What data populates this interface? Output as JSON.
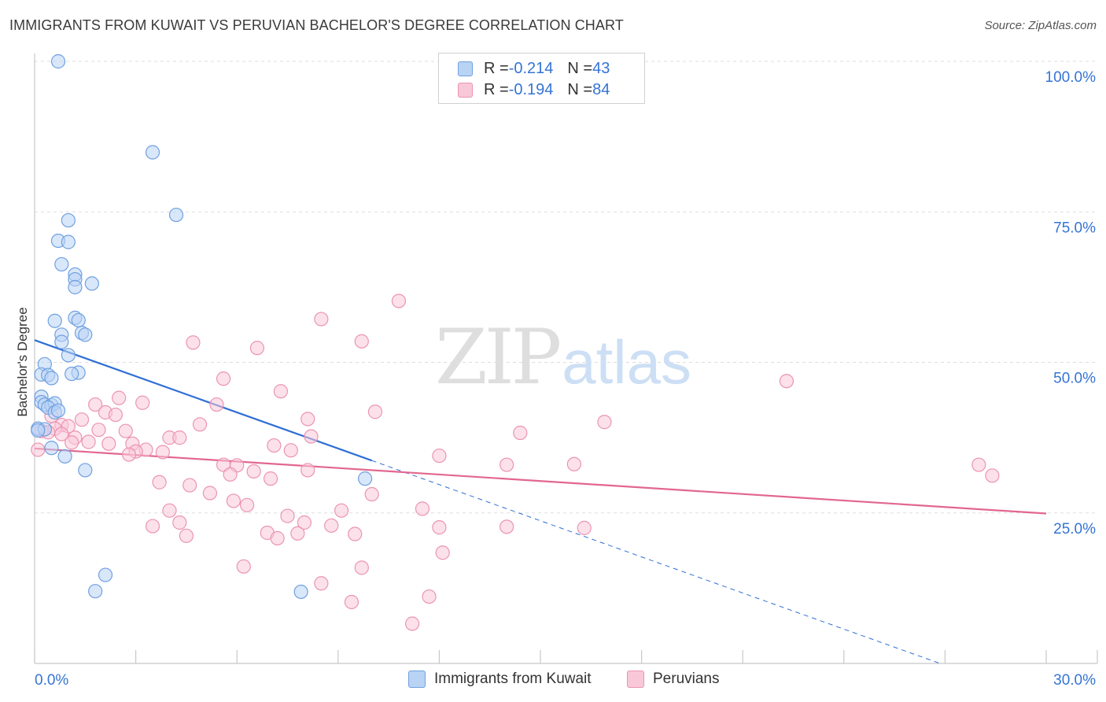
{
  "title": "IMMIGRANTS FROM KUWAIT VS PERUVIAN BACHELOR'S DEGREE CORRELATION CHART",
  "source": "Source: ZipAtlas.com",
  "watermark": {
    "zip": "ZIP",
    "atlas": "atlas"
  },
  "legend_top": {
    "rows": [
      {
        "r_label": "R = ",
        "r_value": "-0.214",
        "n_label": "N = ",
        "n_value": "43"
      },
      {
        "r_label": "R = ",
        "r_value": "-0.194",
        "n_label": "N = ",
        "n_value": "84"
      }
    ]
  },
  "legend_bottom": {
    "series1": "Immigrants from Kuwait",
    "series2": "Peruvians"
  },
  "colors": {
    "kuwait_fill": "#b9d3f5",
    "kuwait_stroke": "#6fa0e0",
    "kuwait_line": "#2f6fd6",
    "peru_fill": "#f9c8d8",
    "peru_stroke": "#eb94b2",
    "peru_line": "#e2678f",
    "axis_label_blue": "#3574d4"
  },
  "chart_data": {
    "type": "scatter",
    "ylabel": "Bachelor's Degree",
    "xlim": [
      0,
      30
    ],
    "ylim": [
      0,
      100
    ],
    "x_tick_labels": [
      "0.0%",
      "30.0%"
    ],
    "y_tick_labels": [
      "25.0%",
      "50.0%",
      "75.0%",
      "100.0%"
    ],
    "y_ticks": [
      25,
      50,
      75,
      100
    ],
    "grid": true,
    "legend_position": "top-center",
    "series": [
      {
        "name": "Immigrants from Kuwait",
        "r": -0.214,
        "n": 43,
        "trend": {
          "x0": 0,
          "y0": 53.7,
          "x1": 10.0,
          "y1": 33.7,
          "dashed_to_x": 26.9
        },
        "points": [
          [
            0.7,
            100.0
          ],
          [
            3.5,
            84.9
          ],
          [
            4.2,
            74.5
          ],
          [
            1.0,
            73.6
          ],
          [
            0.7,
            70.2
          ],
          [
            1.0,
            70.0
          ],
          [
            0.8,
            66.3
          ],
          [
            1.2,
            64.6
          ],
          [
            1.2,
            63.8
          ],
          [
            1.7,
            63.1
          ],
          [
            1.2,
            62.5
          ],
          [
            0.6,
            56.9
          ],
          [
            1.2,
            57.4
          ],
          [
            1.3,
            57.0
          ],
          [
            0.8,
            54.6
          ],
          [
            1.4,
            54.9
          ],
          [
            1.5,
            54.6
          ],
          [
            0.8,
            53.4
          ],
          [
            1.0,
            51.2
          ],
          [
            0.3,
            49.7
          ],
          [
            0.2,
            48.0
          ],
          [
            0.4,
            47.9
          ],
          [
            0.5,
            47.4
          ],
          [
            1.3,
            48.3
          ],
          [
            1.1,
            48.1
          ],
          [
            0.2,
            44.3
          ],
          [
            0.2,
            43.4
          ],
          [
            0.3,
            43.0
          ],
          [
            0.5,
            42.9
          ],
          [
            0.6,
            43.2
          ],
          [
            0.4,
            42.5
          ],
          [
            0.6,
            41.7
          ],
          [
            0.7,
            42.0
          ],
          [
            0.1,
            39.0
          ],
          [
            0.3,
            38.9
          ],
          [
            0.1,
            38.7
          ],
          [
            0.5,
            35.8
          ],
          [
            0.9,
            34.4
          ],
          [
            1.5,
            32.1
          ],
          [
            9.8,
            30.7
          ],
          [
            2.1,
            14.7
          ],
          [
            1.8,
            12.0
          ],
          [
            7.9,
            11.9
          ]
        ]
      },
      {
        "name": "Peruvians",
        "r": -0.194,
        "n": 84,
        "trend": {
          "x0": 0,
          "y0": 35.7,
          "x1": 30,
          "y1": 24.9
        },
        "points": [
          [
            10.8,
            60.2
          ],
          [
            8.5,
            57.2
          ],
          [
            9.7,
            53.5
          ],
          [
            4.7,
            53.3
          ],
          [
            6.6,
            52.4
          ],
          [
            5.6,
            47.3
          ],
          [
            22.3,
            46.9
          ],
          [
            7.3,
            45.2
          ],
          [
            2.5,
            44.1
          ],
          [
            3.2,
            43.3
          ],
          [
            1.8,
            43.0
          ],
          [
            5.4,
            43.0
          ],
          [
            2.1,
            41.7
          ],
          [
            2.4,
            41.3
          ],
          [
            10.1,
            41.8
          ],
          [
            0.5,
            41.1
          ],
          [
            8.1,
            40.6
          ],
          [
            1.4,
            40.5
          ],
          [
            16.9,
            40.1
          ],
          [
            0.8,
            39.6
          ],
          [
            1.0,
            39.4
          ],
          [
            4.9,
            39.7
          ],
          [
            0.6,
            39.0
          ],
          [
            0.2,
            38.6
          ],
          [
            1.9,
            38.8
          ],
          [
            0.4,
            38.4
          ],
          [
            2.7,
            38.6
          ],
          [
            0.8,
            38.1
          ],
          [
            14.4,
            38.3
          ],
          [
            1.2,
            37.5
          ],
          [
            4.0,
            37.5
          ],
          [
            4.3,
            37.5
          ],
          [
            8.2,
            37.7
          ],
          [
            1.1,
            36.7
          ],
          [
            1.6,
            36.8
          ],
          [
            2.2,
            36.5
          ],
          [
            2.9,
            36.5
          ],
          [
            7.1,
            36.2
          ],
          [
            3.3,
            35.5
          ],
          [
            7.6,
            35.4
          ],
          [
            3.0,
            35.2
          ],
          [
            3.8,
            35.1
          ],
          [
            2.8,
            34.7
          ],
          [
            12.0,
            34.5
          ],
          [
            5.6,
            33.0
          ],
          [
            6.0,
            32.9
          ],
          [
            14.0,
            33.0
          ],
          [
            16.0,
            33.1
          ],
          [
            8.1,
            32.1
          ],
          [
            28.0,
            33.0
          ],
          [
            28.4,
            31.2
          ],
          [
            5.8,
            31.4
          ],
          [
            6.5,
            31.9
          ],
          [
            7.0,
            30.7
          ],
          [
            3.7,
            30.1
          ],
          [
            4.6,
            29.6
          ],
          [
            10.0,
            28.1
          ],
          [
            5.2,
            28.3
          ],
          [
            5.9,
            27.0
          ],
          [
            6.3,
            26.3
          ],
          [
            11.5,
            25.7
          ],
          [
            4.0,
            25.4
          ],
          [
            9.1,
            25.4
          ],
          [
            7.5,
            24.5
          ],
          [
            4.3,
            23.4
          ],
          [
            8.0,
            23.4
          ],
          [
            8.8,
            22.9
          ],
          [
            3.5,
            22.8
          ],
          [
            12.0,
            22.6
          ],
          [
            14.0,
            22.7
          ],
          [
            16.3,
            22.5
          ],
          [
            6.9,
            21.7
          ],
          [
            7.8,
            21.6
          ],
          [
            9.5,
            21.5
          ],
          [
            4.5,
            21.2
          ],
          [
            7.2,
            20.8
          ],
          [
            12.1,
            18.4
          ],
          [
            6.2,
            16.1
          ],
          [
            9.7,
            15.9
          ],
          [
            8.5,
            13.3
          ],
          [
            11.7,
            11.1
          ],
          [
            9.4,
            10.2
          ],
          [
            11.2,
            6.6
          ],
          [
            0.1,
            35.5
          ]
        ]
      }
    ]
  }
}
